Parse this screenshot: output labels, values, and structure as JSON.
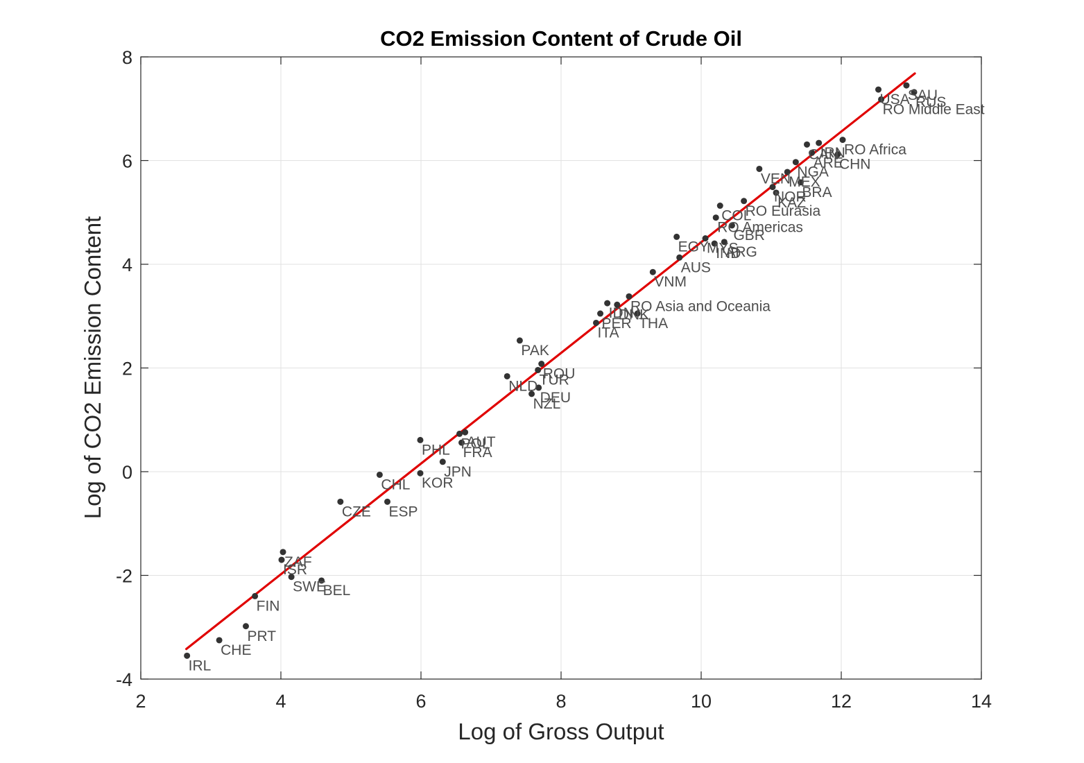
{
  "chart_data": {
    "type": "scatter",
    "title": "CO2 Emission Content of Crude Oil",
    "xlabel": "Log of Gross Output",
    "ylabel": "Log of CO2 Emission Content",
    "xlim": [
      2,
      14
    ],
    "ylim": [
      -4,
      8
    ],
    "xticks": [
      2,
      4,
      6,
      8,
      10,
      12,
      14
    ],
    "yticks": [
      -4,
      -2,
      0,
      2,
      4,
      6,
      8
    ],
    "grid": true,
    "point_color": "#333333",
    "fit_line": {
      "color": "#e00000",
      "x": [
        2.65,
        13.05
      ],
      "y": [
        -3.42,
        7.68
      ]
    },
    "points": [
      {
        "label": "IRL",
        "x": 2.66,
        "y": -3.55
      },
      {
        "label": "CHE",
        "x": 3.12,
        "y": -3.25
      },
      {
        "label": "PRT",
        "x": 3.5,
        "y": -2.98
      },
      {
        "label": "FIN",
        "x": 3.63,
        "y": -2.4
      },
      {
        "label": "ZAF",
        "x": 4.03,
        "y": -1.55
      },
      {
        "label": "ISR",
        "x": 4.01,
        "y": -1.7
      },
      {
        "label": "SWE",
        "x": 4.15,
        "y": -2.03
      },
      {
        "label": "BEL",
        "x": 4.58,
        "y": -2.1
      },
      {
        "label": "CZE",
        "x": 4.85,
        "y": -0.58
      },
      {
        "label": "ESP",
        "x": 5.52,
        "y": -0.58
      },
      {
        "label": "CHL",
        "x": 5.41,
        "y": -0.06
      },
      {
        "label": "KOR",
        "x": 5.99,
        "y": -0.03
      },
      {
        "label": "PHL",
        "x": 5.99,
        "y": 0.61
      },
      {
        "label": "JPN",
        "x": 6.31,
        "y": 0.19
      },
      {
        "label": "AUT",
        "x": 6.63,
        "y": 0.76
      },
      {
        "label": "POL",
        "x": 6.55,
        "y": 0.73
      },
      {
        "label": "FRA",
        "x": 6.58,
        "y": 0.56
      },
      {
        "label": "NLD",
        "x": 7.23,
        "y": 1.84
      },
      {
        "label": "PAK",
        "x": 7.41,
        "y": 2.53
      },
      {
        "label": "ROU",
        "x": 7.72,
        "y": 2.08
      },
      {
        "label": "TUR",
        "x": 7.67,
        "y": 1.96
      },
      {
        "label": "DEU",
        "x": 7.68,
        "y": 1.62
      },
      {
        "label": "NZL",
        "x": 7.58,
        "y": 1.5
      },
      {
        "label": "ITA",
        "x": 8.5,
        "y": 2.87
      },
      {
        "label": "PER",
        "x": 8.56,
        "y": 3.05
      },
      {
        "label": "IDN",
        "x": 8.66,
        "y": 3.25
      },
      {
        "label": "DNK",
        "x": 8.8,
        "y": 3.22
      },
      {
        "label": "RO Asia and Oceania",
        "x": 8.97,
        "y": 3.38
      },
      {
        "label": "THA",
        "x": 9.09,
        "y": 3.05
      },
      {
        "label": "VNM",
        "x": 9.31,
        "y": 3.85
      },
      {
        "label": "AUS",
        "x": 9.69,
        "y": 4.13
      },
      {
        "label": "EGY",
        "x": 9.65,
        "y": 4.53
      },
      {
        "label": "MYS",
        "x": 10.06,
        "y": 4.5
      },
      {
        "label": "IND",
        "x": 10.19,
        "y": 4.4
      },
      {
        "label": "ARG",
        "x": 10.33,
        "y": 4.43
      },
      {
        "label": "COL",
        "x": 10.27,
        "y": 5.13
      },
      {
        "label": "RO Americas",
        "x": 10.21,
        "y": 4.9
      },
      {
        "label": "GBR",
        "x": 10.44,
        "y": 4.75
      },
      {
        "label": "RO Eurasia",
        "x": 10.61,
        "y": 5.22
      },
      {
        "label": "VEN",
        "x": 10.83,
        "y": 5.84
      },
      {
        "label": "NOR",
        "x": 11.02,
        "y": 5.49
      },
      {
        "label": "KAZ",
        "x": 11.07,
        "y": 5.38
      },
      {
        "label": "MEX",
        "x": 11.23,
        "y": 5.78
      },
      {
        "label": "NGA",
        "x": 11.35,
        "y": 5.97
      },
      {
        "label": "BRA",
        "x": 11.42,
        "y": 5.58
      },
      {
        "label": "CAN",
        "x": 11.51,
        "y": 6.31
      },
      {
        "label": "IRN",
        "x": 11.68,
        "y": 6.34
      },
      {
        "label": "ARE",
        "x": 11.58,
        "y": 6.15
      },
      {
        "label": "CHN",
        "x": 11.95,
        "y": 6.12
      },
      {
        "label": "RO Africa",
        "x": 12.02,
        "y": 6.4
      },
      {
        "label": "USA",
        "x": 12.53,
        "y": 7.37
      },
      {
        "label": "RO Middle East",
        "x": 12.57,
        "y": 7.18
      },
      {
        "label": "SAU",
        "x": 12.93,
        "y": 7.45
      },
      {
        "label": "RUS",
        "x": 13.04,
        "y": 7.32
      }
    ]
  }
}
